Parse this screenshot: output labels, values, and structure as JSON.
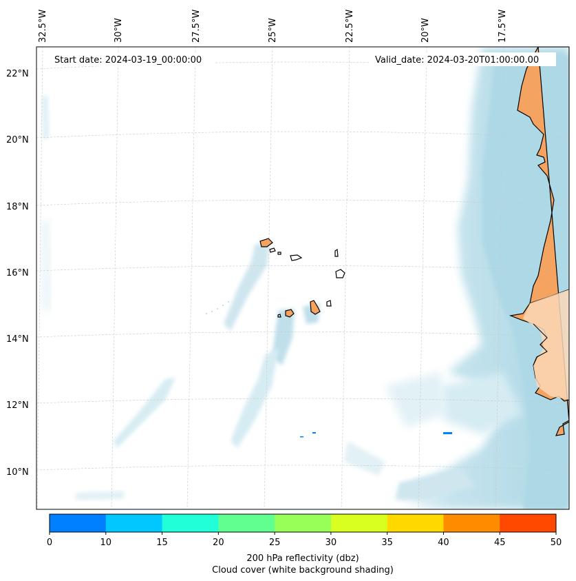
{
  "map": {
    "start_date": "Start date: 2024-03-19_00:00:00",
    "valid_date": "Valid_date: 2024-03-20T01:00:00.00",
    "lon_labels": [
      "32.5°W",
      "30°W",
      "27.5°W",
      "25°W",
      "22.5°W",
      "20°W",
      "17.5°W"
    ],
    "lat_labels": [
      "22°N",
      "20°N",
      "18°N",
      "16°N",
      "14°N",
      "12°N",
      "10°N"
    ]
  },
  "colorbar": {
    "ticks": [
      "0",
      "10",
      "15",
      "20",
      "25",
      "30",
      "35",
      "40",
      "45",
      "50"
    ],
    "colors": [
      "#0080ff",
      "#00c8ff",
      "#20ffd8",
      "#60ff90",
      "#98ff58",
      "#d8ff20",
      "#ffd800",
      "#ff8c00",
      "#ff4800"
    ],
    "label_line1": "200 hPa reflectivity (dbz)",
    "label_line2": "Cloud cover (white background shading)"
  },
  "colors": {
    "land": "#f4a460",
    "cloud": "#add8e6",
    "cloud_light": "#d4ebf2",
    "reflectivity_spot": "#0080ff"
  }
}
